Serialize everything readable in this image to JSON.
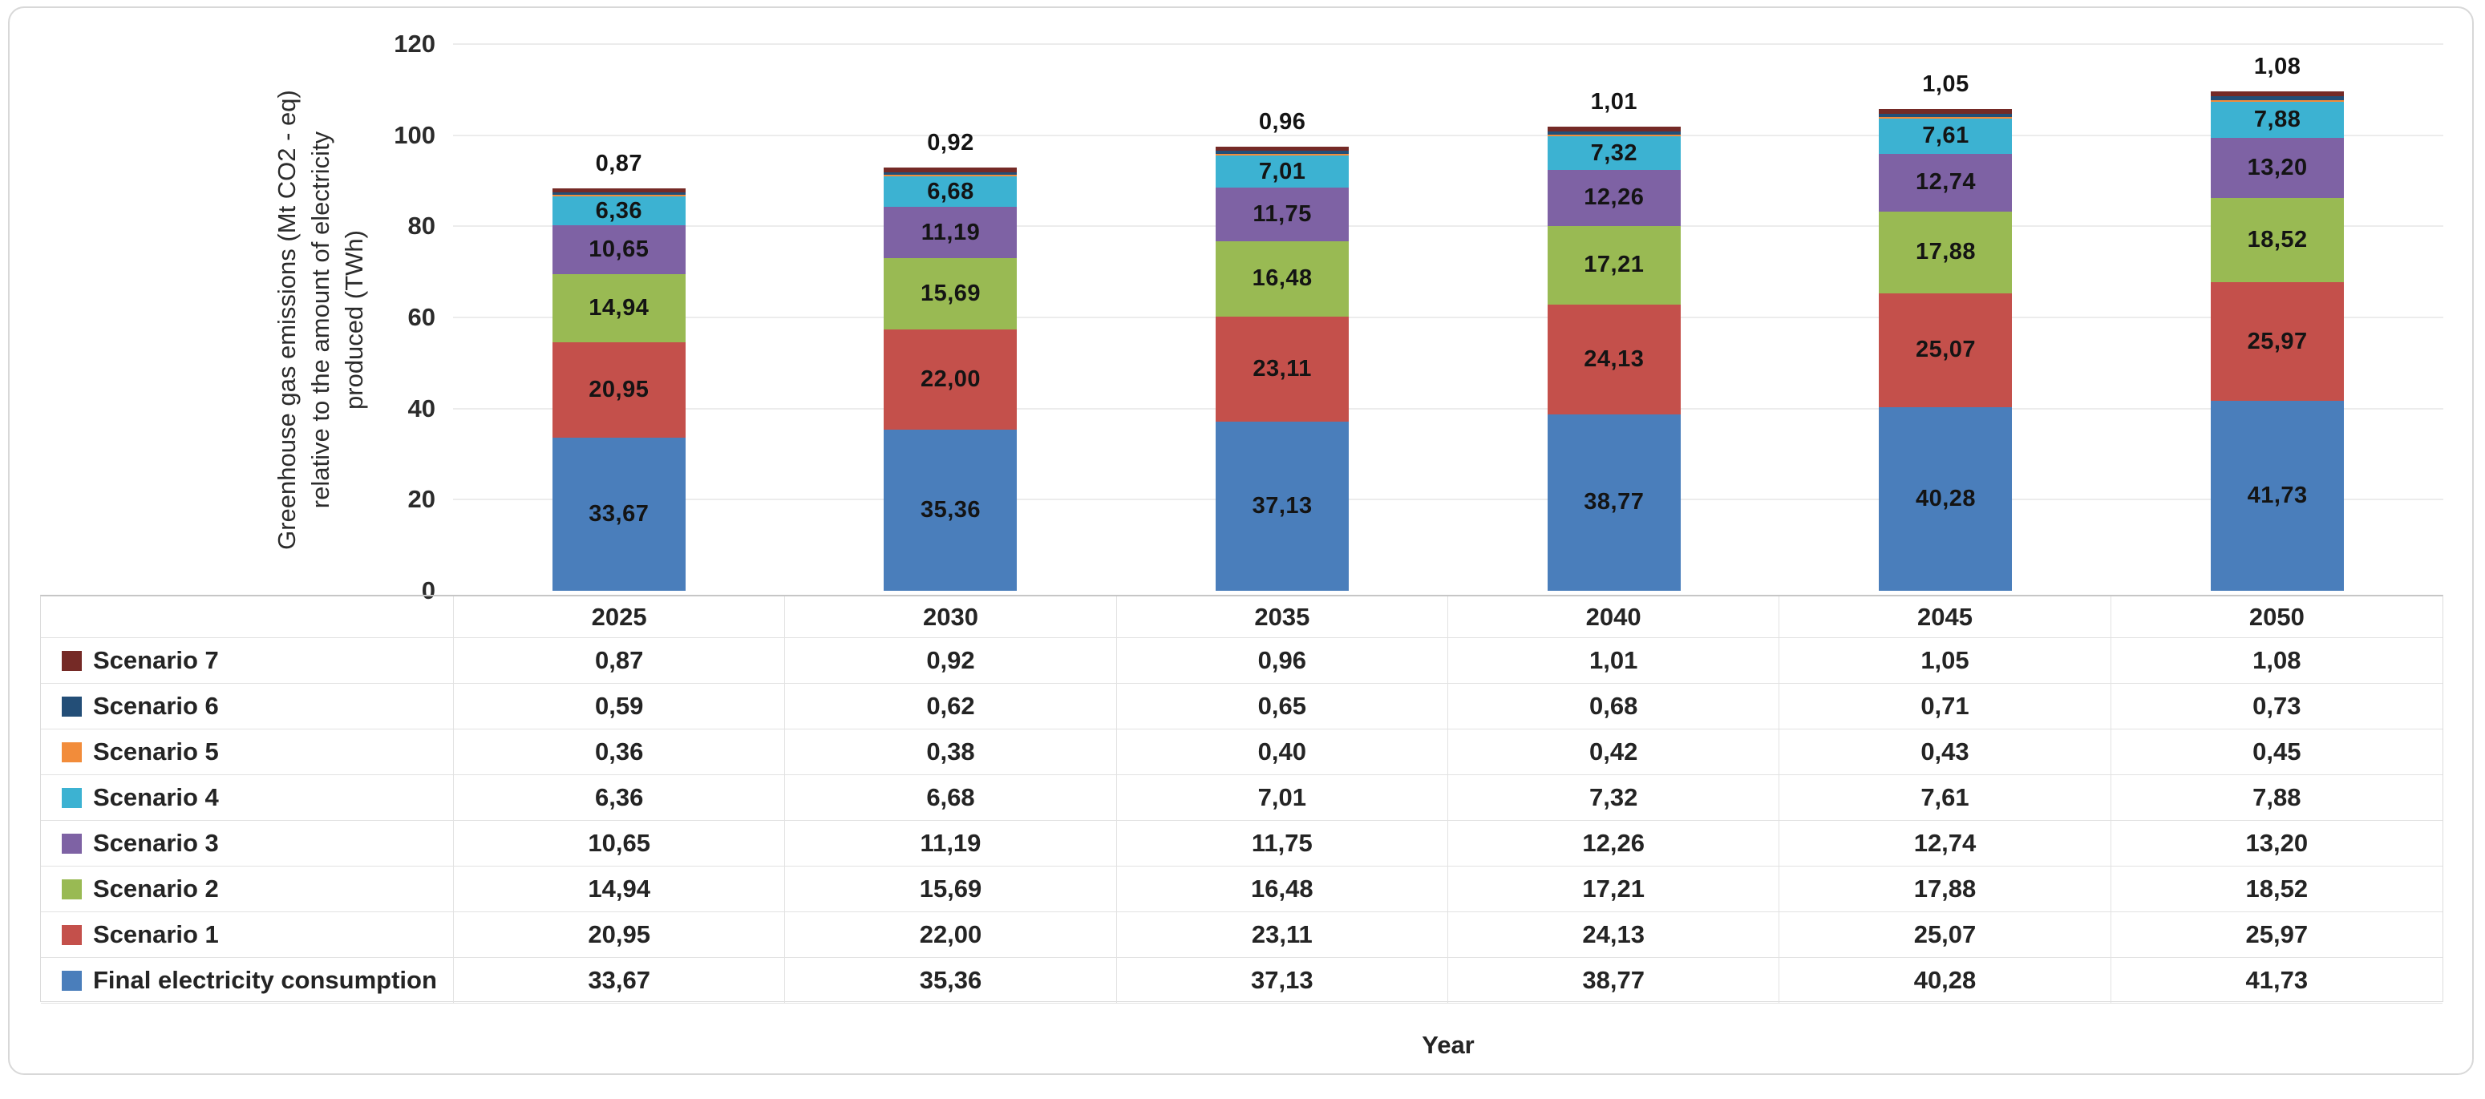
{
  "chart_data": {
    "type": "bar",
    "stacked": true,
    "title": "",
    "xlabel": "Year",
    "ylabel": "Greenhouse gas emissions (Mt CO2 - eq)\nrelative to the amount of electricity\nproduced (TWh)",
    "ylim": [
      0,
      120
    ],
    "yticks": [
      0,
      20,
      40,
      60,
      80,
      100,
      120
    ],
    "grid": true,
    "decimal_separator": ",",
    "legend_position": "table-left",
    "categories": [
      "2025",
      "2030",
      "2035",
      "2040",
      "2045",
      "2050"
    ],
    "series": [
      {
        "name": "Final electricity consumption",
        "color": "#4a7ebb",
        "label_mode": "inside",
        "values": [
          33.67,
          35.36,
          37.13,
          38.77,
          40.28,
          41.73
        ]
      },
      {
        "name": "Scenario 1",
        "color": "#c4504b",
        "label_mode": "inside",
        "values": [
          20.95,
          22.0,
          23.11,
          24.13,
          25.07,
          25.97
        ]
      },
      {
        "name": "Scenario 2",
        "color": "#99ba53",
        "label_mode": "inside",
        "values": [
          14.94,
          15.69,
          16.48,
          17.21,
          17.88,
          18.52
        ]
      },
      {
        "name": "Scenario 3",
        "color": "#7e62a4",
        "label_mode": "inside",
        "values": [
          10.65,
          11.19,
          11.75,
          12.26,
          12.74,
          13.2
        ]
      },
      {
        "name": "Scenario 4",
        "color": "#3cb2d2",
        "label_mode": "inside",
        "values": [
          6.36,
          6.68,
          7.01,
          7.32,
          7.61,
          7.88
        ]
      },
      {
        "name": "Scenario 5",
        "color": "#f28c3a",
        "label_mode": "none",
        "values": [
          0.36,
          0.38,
          0.4,
          0.42,
          0.43,
          0.45
        ]
      },
      {
        "name": "Scenario 6",
        "color": "#234e77",
        "label_mode": "none",
        "values": [
          0.59,
          0.62,
          0.65,
          0.68,
          0.71,
          0.73
        ]
      },
      {
        "name": "Scenario 7",
        "color": "#752a26",
        "label_mode": "above",
        "values": [
          0.87,
          0.92,
          0.96,
          1.01,
          1.05,
          1.08
        ]
      }
    ]
  }
}
